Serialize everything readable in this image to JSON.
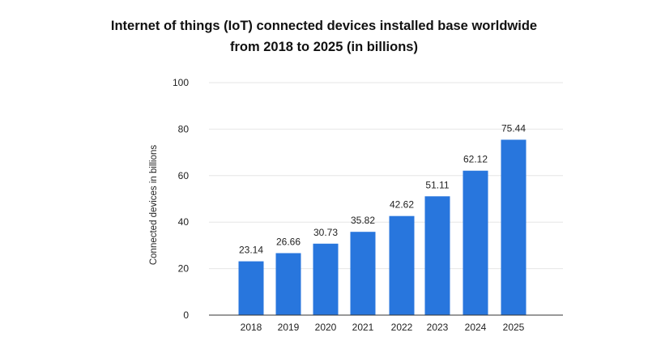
{
  "chart_data": {
    "type": "bar",
    "title": "Internet of things (IoT) connected devices installed base worldwide",
    "subtitle": "from 2018 to 2025 (in billions)",
    "xlabel": "",
    "ylabel": "Connected devices in billions",
    "categories": [
      "2018",
      "2019",
      "2020",
      "2021",
      "2022",
      "2023",
      "2024",
      "2025"
    ],
    "values": [
      23.14,
      26.66,
      30.73,
      35.82,
      42.62,
      51.11,
      62.12,
      75.44
    ],
    "data_labels": [
      "23.14",
      "26.66",
      "30.73",
      "35.82",
      "42.62",
      "51.11",
      "62.12",
      "75.44"
    ],
    "ylim": [
      0,
      100
    ],
    "yticks": [
      "0",
      "20",
      "40",
      "60",
      "80",
      "100"
    ],
    "grid": true,
    "legend": "none",
    "bar_color": "#2876dd"
  }
}
